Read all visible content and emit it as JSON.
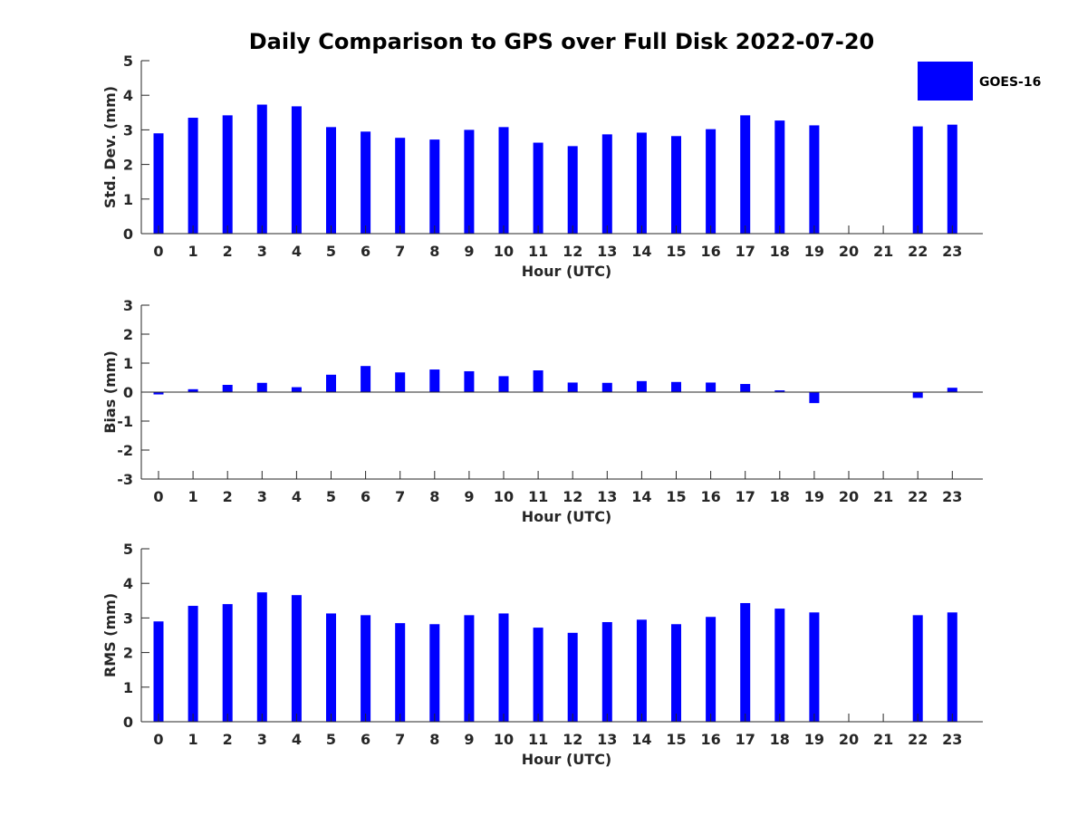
{
  "chart_data": {
    "title": "Daily Comparison to GPS over Full Disk 2022-07-20",
    "legend": {
      "label": "GOES-16",
      "placement": "top-right"
    },
    "colors": {
      "bar": "#0000ff",
      "axis": "#262626",
      "text": "#262626"
    },
    "panels": [
      {
        "type": "bar",
        "ylabel": "Std. Dev. (mm)",
        "xlabel": "Hour (UTC)",
        "ylim": [
          0,
          5
        ],
        "yticks": [
          0,
          1,
          2,
          3,
          4,
          5
        ],
        "categories": [
          "0",
          "1",
          "2",
          "3",
          "4",
          "5",
          "6",
          "7",
          "8",
          "9",
          "10",
          "11",
          "12",
          "13",
          "14",
          "15",
          "16",
          "17",
          "18",
          "19",
          "20",
          "21",
          "22",
          "23"
        ],
        "series": [
          {
            "name": "GOES-16",
            "values": [
              2.9,
              3.35,
              3.42,
              3.73,
              3.68,
              3.08,
              2.95,
              2.77,
              2.72,
              3.0,
              3.08,
              2.63,
              2.53,
              2.87,
              2.92,
              2.82,
              3.02,
              3.42,
              3.27,
              3.13,
              null,
              null,
              3.1,
              3.15
            ]
          }
        ]
      },
      {
        "type": "bar",
        "ylabel": "Bias (mm)",
        "xlabel": "Hour (UTC)",
        "ylim": [
          -3,
          3
        ],
        "yticks": [
          -3,
          -2,
          -1,
          0,
          1,
          2,
          3
        ],
        "categories": [
          "0",
          "1",
          "2",
          "3",
          "4",
          "5",
          "6",
          "7",
          "8",
          "9",
          "10",
          "11",
          "12",
          "13",
          "14",
          "15",
          "16",
          "17",
          "18",
          "19",
          "20",
          "21",
          "22",
          "23"
        ],
        "series": [
          {
            "name": "GOES-16",
            "values": [
              -0.08,
              0.1,
              0.25,
              0.32,
              0.17,
              0.6,
              0.9,
              0.68,
              0.78,
              0.72,
              0.55,
              0.75,
              0.33,
              0.32,
              0.38,
              0.35,
              0.33,
              0.28,
              0.06,
              -0.38,
              null,
              null,
              -0.2,
              0.15
            ]
          }
        ]
      },
      {
        "type": "bar",
        "ylabel": "RMS (mm)",
        "xlabel": "Hour (UTC)",
        "ylim": [
          0,
          5
        ],
        "yticks": [
          0,
          1,
          2,
          3,
          4,
          5
        ],
        "categories": [
          "0",
          "1",
          "2",
          "3",
          "4",
          "5",
          "6",
          "7",
          "8",
          "9",
          "10",
          "11",
          "12",
          "13",
          "14",
          "15",
          "16",
          "17",
          "18",
          "19",
          "20",
          "21",
          "22",
          "23"
        ],
        "series": [
          {
            "name": "GOES-16",
            "values": [
              2.9,
              3.35,
              3.4,
              3.74,
              3.66,
              3.13,
              3.08,
              2.85,
              2.82,
              3.08,
              3.13,
              2.72,
              2.57,
              2.88,
              2.95,
              2.82,
              3.03,
              3.43,
              3.27,
              3.16,
              null,
              null,
              3.08,
              3.16
            ]
          }
        ]
      }
    ]
  }
}
